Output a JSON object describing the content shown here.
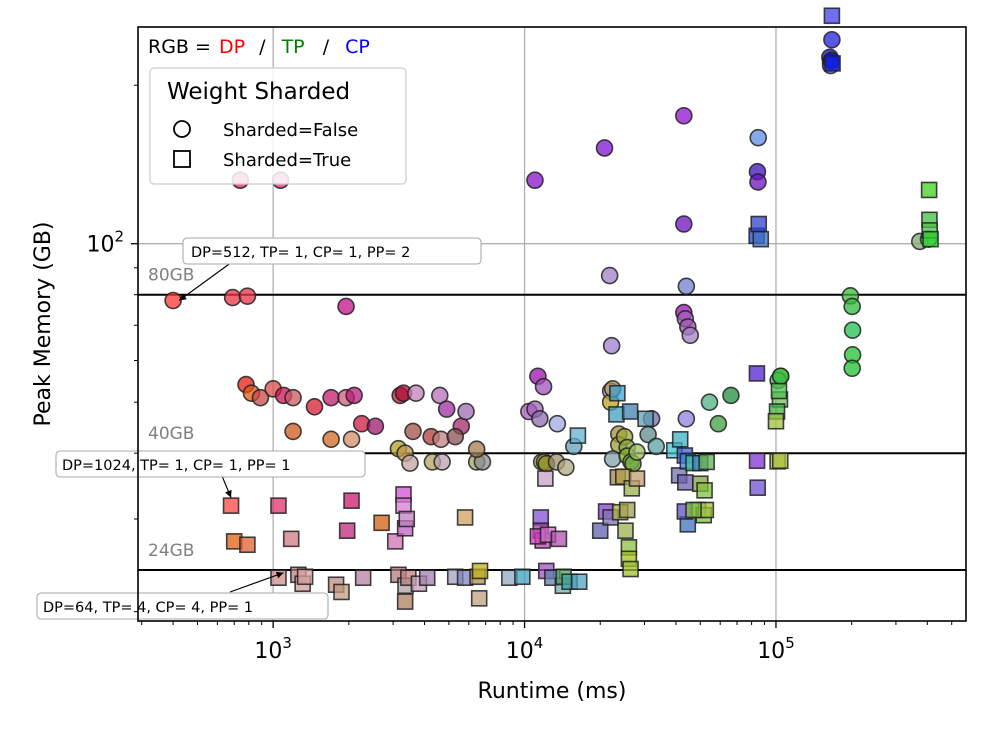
{
  "chart_data": {
    "type": "scatter",
    "xlabel": "Runtime (ms)",
    "ylabel": "Peak Memory (GB)",
    "xscale": "log",
    "yscale": "log",
    "xlim": [
      290,
      570000
    ],
    "ylim": [
      19.2,
      258
    ],
    "x_ticks": [
      {
        "base": "10",
        "exp": "3",
        "value": 1000
      },
      {
        "base": "10",
        "exp": "4",
        "value": 10000
      },
      {
        "base": "10",
        "exp": "5",
        "value": 100000
      }
    ],
    "y_ticks": [
      {
        "base": "10",
        "exp": "2",
        "value": 100
      }
    ],
    "grid": true,
    "color_title": {
      "prefix": "RGB = ",
      "dp": "DP",
      "tp": "TP",
      "cp": "CP",
      "sep": "/",
      "dp_color": "#ff0000",
      "tp_color": "#008000",
      "cp_color": "#0000ff"
    },
    "reference_lines": [
      {
        "value": 80,
        "label": "80GB"
      },
      {
        "value": 40,
        "label": "40GB"
      },
      {
        "value": 24,
        "label": "24GB"
      }
    ],
    "legend": {
      "title": "Weight Sharded",
      "placement": "top-left",
      "entries": [
        {
          "marker": "circle",
          "label": "Sharded=False"
        },
        {
          "marker": "square",
          "label": "Sharded=True"
        }
      ]
    },
    "annotations": [
      {
        "text": "DP=512, TP= 1, CP= 1, PP= 2",
        "x": 400,
        "y": 78
      },
      {
        "text": "DP=1024, TP= 1, CP= 1, PP= 1",
        "x": 680,
        "y": 31.8
      },
      {
        "text": "DP=64, TP= 4, CP= 4, PP= 1",
        "x": 1100,
        "y": 23.3
      }
    ],
    "series": [
      {
        "name": "Sharded=False",
        "marker": "circle",
        "points": [
          [
            740,
            132,
            "#ee2266"
          ],
          [
            1070,
            132,
            "#e2337a"
          ],
          [
            400,
            78,
            "#ff3333"
          ],
          [
            690,
            79,
            "#ee3344"
          ],
          [
            790,
            79.5,
            "#e83344"
          ],
          [
            1950,
            76,
            "#c0108a"
          ],
          [
            780,
            54,
            "#e81d12"
          ],
          [
            820,
            52,
            "#e05a10"
          ],
          [
            890,
            51,
            "#c84848"
          ],
          [
            1000,
            53,
            "#e04a4a"
          ],
          [
            1100,
            51.5,
            "#d01058"
          ],
          [
            1200,
            51,
            "#c85a66"
          ],
          [
            1460,
            49,
            "#d41c30"
          ],
          [
            1700,
            51,
            "#c01c6c"
          ],
          [
            1950,
            51,
            "#d05c80"
          ],
          [
            2100,
            51.5,
            "#b81c7a"
          ],
          [
            3200,
            51.5,
            "#c01c3c"
          ],
          [
            3300,
            52,
            "#b0103a"
          ],
          [
            3700,
            52,
            "#c080b8"
          ],
          [
            4600,
            51.5,
            "#b86cbc"
          ],
          [
            1200,
            44,
            "#d05a1a"
          ],
          [
            2250,
            45.5,
            "#d01a40"
          ],
          [
            1700,
            42.5,
            "#d06a20"
          ],
          [
            2050,
            42.5,
            "#d08c6c"
          ],
          [
            2550,
            45,
            "#9c1a6c"
          ],
          [
            3600,
            44,
            "#a05044"
          ],
          [
            4250,
            43,
            "#b03c3c"
          ],
          [
            4650,
            42.5,
            "#c08080"
          ],
          [
            5600,
            45,
            "#a4286c"
          ],
          [
            5850,
            48,
            "#a06cb0"
          ],
          [
            3150,
            40.8,
            "#b0a020"
          ],
          [
            3350,
            40,
            "#c09850"
          ],
          [
            3500,
            38.3,
            "#c0a4a4"
          ],
          [
            4300,
            38.5,
            "#b0a460"
          ],
          [
            4700,
            38.5,
            "#bca0b0"
          ],
          [
            6450,
            38.5,
            "#a0a460"
          ],
          [
            6800,
            38.5,
            "#8c8c8c"
          ],
          [
            6450,
            40.7,
            "#a47c50"
          ],
          [
            5300,
            43,
            "#885050"
          ],
          [
            4900,
            48.5,
            "#9c2ca0"
          ],
          [
            11000,
            132,
            "#8810cc"
          ],
          [
            11300,
            56,
            "#9c10b0"
          ],
          [
            11900,
            53.5,
            "#a050b8"
          ],
          [
            10400,
            48,
            "#b060c0"
          ],
          [
            11000,
            48.5,
            "#a060b8"
          ],
          [
            11500,
            46.5,
            "#8c6cb0"
          ],
          [
            13500,
            45.5,
            "#a0a8e0"
          ],
          [
            11700,
            38.5,
            "#a8a450"
          ],
          [
            12000,
            38.5,
            "#b0a460"
          ],
          [
            12200,
            38.2,
            "#8c8c20"
          ],
          [
            13400,
            38.5,
            "#9c8c6c"
          ],
          [
            14600,
            37.6,
            "#b0a880"
          ],
          [
            15700,
            41.2,
            "#60a0b8"
          ],
          [
            20800,
            152,
            "#8010d0"
          ],
          [
            21800,
            87,
            "#a080c8"
          ],
          [
            22200,
            64,
            "#9c80d0"
          ],
          [
            22000,
            52.5,
            "#c0a0d8"
          ],
          [
            22000,
            50,
            "#c0a020"
          ],
          [
            22400,
            53,
            "#b09450"
          ],
          [
            23700,
            43.5,
            "#a08c3c"
          ],
          [
            23700,
            41.5,
            "#9c9c38"
          ],
          [
            22400,
            39,
            "#80a0a8"
          ],
          [
            25000,
            43,
            "#a0a838"
          ],
          [
            25600,
            41,
            "#8cac40"
          ],
          [
            25600,
            39.5,
            "#80ac2c"
          ],
          [
            26500,
            38.5,
            "#74a830"
          ],
          [
            27000,
            38.2,
            "#70a840"
          ],
          [
            28000,
            40.2,
            "#9cc060"
          ],
          [
            31000,
            43.4,
            "#608c8c"
          ],
          [
            33400,
            41.2,
            "#5ca0a0"
          ],
          [
            32000,
            46.5,
            "#6c6cb0"
          ],
          [
            43000,
            175,
            "#9010d0"
          ],
          [
            43000,
            109,
            "#6c10c0"
          ],
          [
            44000,
            83,
            "#7080d0"
          ],
          [
            43000,
            74,
            "#9c10b0"
          ],
          [
            43600,
            72,
            "#a060b8"
          ],
          [
            44600,
            69.5,
            "#9c50b0"
          ],
          [
            45600,
            67,
            "#a080c0"
          ],
          [
            44000,
            46.5,
            "#8c80e0"
          ],
          [
            54400,
            50,
            "#50b080"
          ],
          [
            59000,
            45.5,
            "#40a040"
          ],
          [
            66200,
            51.5,
            "#208c3c"
          ],
          [
            84400,
            137,
            "#3c10c0"
          ],
          [
            84800,
            131,
            "#6c10c0"
          ],
          [
            85000,
            159,
            "#5c8ce8"
          ],
          [
            104400,
            56,
            "#2cb02c"
          ],
          [
            102000,
            55,
            "#40b060"
          ],
          [
            104400,
            56,
            "#40c040"
          ],
          [
            197700,
            79.6,
            "#40b840"
          ],
          [
            201000,
            76,
            "#30b840"
          ],
          [
            201700,
            68.5,
            "#20c050"
          ],
          [
            201700,
            61.5,
            "#20c030"
          ],
          [
            201000,
            58,
            "#20c030"
          ],
          [
            166900,
            244,
            "#2020d8"
          ],
          [
            163800,
            226,
            "#1010e0"
          ],
          [
            164800,
            221,
            "#1020e8"
          ],
          [
            165000,
            218,
            "#6060e8"
          ],
          [
            166200,
            223,
            "#1010d0"
          ],
          [
            373300,
            101,
            "#80a870"
          ],
          [
            404500,
            102,
            "#50c860"
          ]
        ]
      },
      {
        "name": "Sharded=True",
        "marker": "square",
        "points": [
          [
            680,
            31.8,
            "#ff4444"
          ],
          [
            1050,
            31.8,
            "#e0306c"
          ],
          [
            2050,
            32.5,
            "#c81a70"
          ],
          [
            3300,
            33.4,
            "#d050d0"
          ],
          [
            3300,
            31.8,
            "#d87ad0"
          ],
          [
            700,
            27.2,
            "#e06010"
          ],
          [
            790,
            26.8,
            "#e06030"
          ],
          [
            1180,
            27.5,
            "#d07a80"
          ],
          [
            1970,
            28.5,
            "#c0287c"
          ],
          [
            2700,
            29.5,
            "#d06010"
          ],
          [
            3060,
            27.2,
            "#d070b0"
          ],
          [
            3350,
            28.8,
            "#c060c0"
          ],
          [
            3400,
            30,
            "#c080c0"
          ],
          [
            5800,
            30.2,
            "#d0a060"
          ],
          [
            1050,
            23.2,
            "#d08c8c"
          ],
          [
            1260,
            23.5,
            "#c08080"
          ],
          [
            1310,
            22.6,
            "#d09c9c"
          ],
          [
            1340,
            23.3,
            "#d8a0a0"
          ],
          [
            1780,
            22.5,
            "#c08c80"
          ],
          [
            1870,
            21.8,
            "#c09c80"
          ],
          [
            2280,
            23.2,
            "#b880a0"
          ],
          [
            3150,
            23.5,
            "#b07c80"
          ],
          [
            3360,
            22.4,
            "#b0a0a0"
          ],
          [
            3350,
            20.9,
            "#b07c60"
          ],
          [
            3450,
            23.2,
            "#c08080"
          ],
          [
            3800,
            22.6,
            "#c8a0b8"
          ],
          [
            4100,
            23.2,
            "#a080b0"
          ],
          [
            5300,
            23.3,
            "#a0a0c0"
          ],
          [
            5800,
            23.2,
            "#8080c0"
          ],
          [
            6500,
            23.3,
            "#b08c50"
          ],
          [
            6600,
            21.2,
            "#c0a080"
          ],
          [
            6650,
            23.9,
            "#c0b020"
          ],
          [
            8700,
            23.2,
            "#90a8c0"
          ],
          [
            9800,
            23.3,
            "#40a0c0"
          ],
          [
            11600,
            30.2,
            "#8050d0"
          ],
          [
            11600,
            28.5,
            "#a040b0"
          ],
          [
            11800,
            27.3,
            "#c040b0"
          ],
          [
            11300,
            27.8,
            "#d040c0"
          ],
          [
            12400,
            28,
            "#d070d0"
          ],
          [
            13700,
            27.5,
            "#b050b0"
          ],
          [
            12200,
            23.9,
            "#a050c0"
          ],
          [
            12900,
            23.2,
            "#6080b0"
          ],
          [
            14200,
            22.4,
            "#70b0b0"
          ],
          [
            14300,
            23.3,
            "#50a060"
          ],
          [
            15100,
            22.8,
            "#40a0a0"
          ],
          [
            16500,
            22.8,
            "#50a0c0"
          ],
          [
            12100,
            35.8,
            "#c8a0c8"
          ],
          [
            16300,
            43.2,
            "#60b0d0"
          ],
          [
            23400,
            52,
            "#40a0d0"
          ],
          [
            23200,
            47.4,
            "#40a0c0"
          ],
          [
            26300,
            48,
            "#4080b0"
          ],
          [
            30300,
            46.5,
            "#60a0b0"
          ],
          [
            23500,
            36,
            "#a08050"
          ],
          [
            24700,
            36.1,
            "#b0a040"
          ],
          [
            26700,
            34.3,
            "#9cb050"
          ],
          [
            28000,
            35.8,
            "#c0a070"
          ],
          [
            20000,
            28.5,
            "#6060b0"
          ],
          [
            21100,
            31,
            "#8040d0"
          ],
          [
            22000,
            30.2,
            "#8070b0"
          ],
          [
            24000,
            30.9,
            "#b0b040"
          ],
          [
            25600,
            31.2,
            "#a0a050"
          ],
          [
            26000,
            26.5,
            "#8cc040"
          ],
          [
            26000,
            25.2,
            "#a0c020"
          ],
          [
            26400,
            24.1,
            "#a0c030"
          ],
          [
            25200,
            28.5,
            "#9cb050"
          ],
          [
            39400,
            40.5,
            "#40c0d0"
          ],
          [
            41600,
            42.5,
            "#40b0c0"
          ],
          [
            41200,
            36.3,
            "#7070b0"
          ],
          [
            43400,
            39.6,
            "#4060d0"
          ],
          [
            43600,
            35.2,
            "#6c60b0"
          ],
          [
            44600,
            38.6,
            "#4080e0"
          ],
          [
            47000,
            38.3,
            "#40c0a0"
          ],
          [
            50000,
            38.3,
            "#4080c0"
          ],
          [
            50000,
            35,
            "#80a040"
          ],
          [
            53000,
            38.5,
            "#60b050"
          ],
          [
            52000,
            34,
            "#80c040"
          ],
          [
            49000,
            31.2,
            "#90c040"
          ],
          [
            51600,
            30.5,
            "#80c040"
          ],
          [
            52600,
            31.2,
            "#a0c040"
          ],
          [
            44600,
            29.3,
            "#4070c0"
          ],
          [
            43400,
            31,
            "#6050c0"
          ],
          [
            47000,
            31.2,
            "#80c040"
          ],
          [
            84600,
            34.4,
            "#7050d0"
          ],
          [
            84000,
            56.7,
            "#5020d0"
          ],
          [
            84100,
            38.7,
            "#8030d0"
          ],
          [
            103700,
            50.6,
            "#70c060"
          ],
          [
            102800,
            52.5,
            "#50c050"
          ],
          [
            101000,
            48,
            "#40b040"
          ],
          [
            100000,
            46,
            "#a0c040"
          ],
          [
            101500,
            38.6,
            "#a0c040"
          ],
          [
            104000,
            38.7,
            "#b0c040"
          ],
          [
            83800,
            103.5,
            "#2040e0"
          ],
          [
            85400,
            109,
            "#3040d0"
          ],
          [
            87000,
            102,
            "#4070c0"
          ],
          [
            166900,
            271,
            "#4040e8"
          ],
          [
            167900,
            220,
            "#1020e0"
          ],
          [
            406600,
            126.5,
            "#40d020"
          ],
          [
            407900,
            111,
            "#40c040"
          ],
          [
            408800,
            106,
            "#50c050"
          ],
          [
            412000,
            102,
            "#30d030"
          ]
        ]
      }
    ]
  }
}
